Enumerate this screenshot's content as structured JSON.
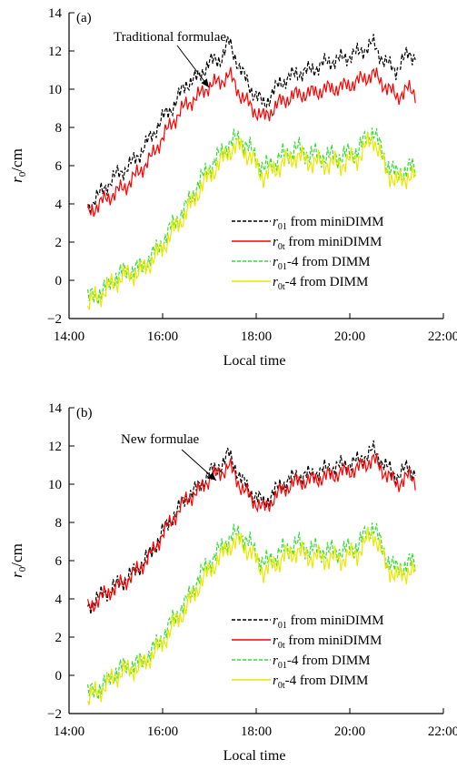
{
  "chart_data": [
    {
      "panel_label": "(a)",
      "type": "line",
      "xlabel": "Local time",
      "ylabel": "r0/cm",
      "xlim": [
        "14:00",
        "22:00"
      ],
      "ylim": [
        -2,
        14
      ],
      "xticks": [
        "14:00",
        "16:00",
        "18:00",
        "20:00",
        "22:00"
      ],
      "yticks": [
        "−2",
        "0",
        "2",
        "4",
        "6",
        "8",
        "10",
        "12",
        "14"
      ],
      "annotation": "Traditional formulae",
      "legend_position": "lower-right",
      "series": [
        {
          "name": "r01 from miniDIMM",
          "color": "#000000",
          "dash": "dashed",
          "x": [
            "14:24",
            "14:45",
            "15:00",
            "15:15",
            "15:30",
            "15:45",
            "16:00",
            "16:15",
            "16:30",
            "16:45",
            "17:00",
            "17:15",
            "17:25",
            "17:40",
            "17:55",
            "18:10",
            "18:30",
            "18:50",
            "19:10",
            "19:30",
            "19:50",
            "20:10",
            "20:30",
            "20:45",
            "21:00",
            "21:15",
            "21:24"
          ],
          "values": [
            3.8,
            4.8,
            5.5,
            5.9,
            6.6,
            7.5,
            8.5,
            9.2,
            10.3,
            10.6,
            11.4,
            11.6,
            12.5,
            11.0,
            9.9,
            9.2,
            10.3,
            10.8,
            11.0,
            11.4,
            11.6,
            11.9,
            12.4,
            11.4,
            11.0,
            11.9,
            11.7
          ]
        },
        {
          "name": "r0t from miniDIMM",
          "color": "#ff0000",
          "dash": "solid",
          "x": [
            "14:24",
            "14:45",
            "15:00",
            "15:15",
            "15:30",
            "15:45",
            "16:00",
            "16:15",
            "16:30",
            "16:45",
            "17:00",
            "17:15",
            "17:25",
            "17:40",
            "17:55",
            "18:10",
            "18:30",
            "18:50",
            "19:10",
            "19:30",
            "19:50",
            "20:10",
            "20:30",
            "20:45",
            "21:00",
            "21:15",
            "21:24"
          ],
          "values": [
            3.5,
            4.2,
            4.6,
            5.0,
            5.7,
            6.4,
            7.5,
            8.4,
            9.2,
            9.6,
            10.2,
            10.4,
            10.8,
            9.7,
            9.0,
            8.5,
            9.3,
            9.7,
            9.8,
            10.0,
            10.1,
            10.4,
            10.8,
            10.2,
            9.6,
            10.0,
            9.8
          ]
        },
        {
          "name": "r01-4 from DIMM",
          "color": "#33dd33",
          "dash": "dashed",
          "x": [
            "14:24",
            "14:45",
            "15:00",
            "15:15",
            "15:30",
            "15:45",
            "16:00",
            "16:15",
            "16:30",
            "16:45",
            "17:00",
            "17:15",
            "17:25",
            "17:40",
            "17:55",
            "18:10",
            "18:30",
            "18:50",
            "19:10",
            "19:30",
            "19:50",
            "20:10",
            "20:30",
            "20:45",
            "21:00",
            "21:15",
            "21:24"
          ],
          "values": [
            -1.0,
            -0.5,
            0.2,
            0.5,
            0.6,
            1.2,
            2.0,
            3.0,
            3.8,
            5.0,
            5.9,
            6.6,
            7.2,
            7.4,
            6.7,
            5.8,
            6.4,
            6.9,
            6.6,
            6.5,
            6.5,
            6.8,
            7.9,
            6.3,
            5.5,
            5.9,
            5.8
          ]
        },
        {
          "name": "r0t-4 from DIMM",
          "color": "#e8e800",
          "dash": "solid",
          "x": [
            "14:24",
            "14:45",
            "15:00",
            "15:15",
            "15:30",
            "15:45",
            "16:00",
            "16:15",
            "16:30",
            "16:45",
            "17:00",
            "17:15",
            "17:25",
            "17:40",
            "17:55",
            "18:10",
            "18:30",
            "18:50",
            "19:10",
            "19:30",
            "19:50",
            "20:10",
            "20:30",
            "20:45",
            "21:00",
            "21:15",
            "21:24"
          ],
          "values": [
            -1.2,
            -0.6,
            0.0,
            0.3,
            0.4,
            1.0,
            1.7,
            2.7,
            3.5,
            4.6,
            5.5,
            6.2,
            6.8,
            7.0,
            6.3,
            5.4,
            6.0,
            6.5,
            6.2,
            6.1,
            6.1,
            6.4,
            7.5,
            5.9,
            5.1,
            5.5,
            5.4
          ]
        }
      ]
    },
    {
      "panel_label": "(b)",
      "type": "line",
      "xlabel": "Local time",
      "ylabel": "r0/cm",
      "xlim": [
        "14:00",
        "22:00"
      ],
      "ylim": [
        -2,
        14
      ],
      "xticks": [
        "14:00",
        "16:00",
        "18:00",
        "20:00",
        "22:00"
      ],
      "yticks": [
        "−2",
        "0",
        "2",
        "4",
        "6",
        "8",
        "10",
        "12",
        "14"
      ],
      "annotation": "New formulae",
      "legend_position": "lower-right",
      "series": [
        {
          "name": "r01 from miniDIMM",
          "color": "#000000",
          "dash": "dashed",
          "x": [
            "14:24",
            "14:45",
            "15:00",
            "15:15",
            "15:30",
            "15:45",
            "16:00",
            "16:15",
            "16:30",
            "16:45",
            "17:00",
            "17:15",
            "17:25",
            "17:40",
            "17:55",
            "18:10",
            "18:30",
            "18:50",
            "19:10",
            "19:30",
            "19:50",
            "20:10",
            "20:30",
            "20:45",
            "21:00",
            "21:15",
            "21:24"
          ],
          "values": [
            3.6,
            4.3,
            4.7,
            5.1,
            5.7,
            6.4,
            7.5,
            8.4,
            9.3,
            9.8,
            10.6,
            11.0,
            11.6,
            10.3,
            9.5,
            9.0,
            9.9,
            10.4,
            10.5,
            10.8,
            11.0,
            11.2,
            11.8,
            11.0,
            10.4,
            10.9,
            10.6
          ]
        },
        {
          "name": "r0t from miniDIMM",
          "color": "#ff0000",
          "dash": "solid",
          "x": [
            "14:24",
            "14:45",
            "15:00",
            "15:15",
            "15:30",
            "15:45",
            "16:00",
            "16:15",
            "16:30",
            "16:45",
            "17:00",
            "17:15",
            "17:25",
            "17:40",
            "17:55",
            "18:10",
            "18:30",
            "18:50",
            "19:10",
            "19:30",
            "19:50",
            "20:10",
            "20:30",
            "20:45",
            "21:00",
            "21:15",
            "21:24"
          ],
          "values": [
            3.5,
            4.2,
            4.6,
            5.0,
            5.6,
            6.3,
            7.4,
            8.3,
            9.2,
            9.6,
            10.3,
            10.6,
            11.0,
            9.9,
            9.2,
            8.7,
            9.6,
            10.1,
            10.2,
            10.4,
            10.6,
            10.8,
            11.3,
            10.6,
            10.0,
            10.4,
            10.2
          ]
        },
        {
          "name": "r01-4 from DIMM",
          "color": "#33dd33",
          "dash": "dashed",
          "x": [
            "14:24",
            "14:45",
            "15:00",
            "15:15",
            "15:30",
            "15:45",
            "16:00",
            "16:15",
            "16:30",
            "16:45",
            "17:00",
            "17:15",
            "17:25",
            "17:40",
            "17:55",
            "18:10",
            "18:30",
            "18:50",
            "19:10",
            "19:30",
            "19:50",
            "20:10",
            "20:30",
            "20:45",
            "21:00",
            "21:15",
            "21:24"
          ],
          "values": [
            -1.0,
            -0.5,
            0.2,
            0.5,
            0.6,
            1.2,
            2.0,
            3.0,
            3.8,
            5.0,
            5.9,
            6.6,
            7.2,
            7.4,
            6.7,
            5.8,
            6.4,
            6.9,
            6.6,
            6.5,
            6.5,
            6.8,
            7.9,
            6.3,
            5.5,
            5.9,
            5.8
          ]
        },
        {
          "name": "r0t-4 from DIMM",
          "color": "#e8e800",
          "dash": "solid",
          "x": [
            "14:24",
            "14:45",
            "15:00",
            "15:15",
            "15:30",
            "15:45",
            "16:00",
            "16:15",
            "16:30",
            "16:45",
            "17:00",
            "17:15",
            "17:25",
            "17:40",
            "17:55",
            "18:10",
            "18:30",
            "18:50",
            "19:10",
            "19:30",
            "19:50",
            "20:10",
            "20:30",
            "20:45",
            "21:00",
            "21:15",
            "21:24"
          ],
          "values": [
            -1.2,
            -0.6,
            0.0,
            0.3,
            0.4,
            1.0,
            1.7,
            2.7,
            3.5,
            4.6,
            5.5,
            6.2,
            6.8,
            7.0,
            6.3,
            5.4,
            6.0,
            6.5,
            6.2,
            6.1,
            6.1,
            6.4,
            7.5,
            5.9,
            5.1,
            5.5,
            5.4
          ]
        }
      ]
    }
  ]
}
